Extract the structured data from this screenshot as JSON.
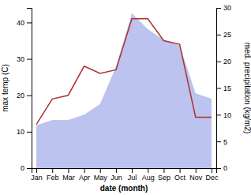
{
  "chart_data": {
    "type": "line",
    "categories": [
      "Jan",
      "Feb",
      "Mar",
      "Apr",
      "May",
      "Jun",
      "Jul",
      "Aug",
      "Sep",
      "Oct",
      "Nov",
      "Dec"
    ],
    "series": [
      {
        "type": "area",
        "color": "#bbc3ee",
        "axis": "y2",
        "values": [
          8,
          9,
          9,
          10,
          12,
          19,
          29,
          26,
          24,
          23,
          14,
          13
        ]
      },
      {
        "type": "line",
        "color": "#b03030",
        "values": [
          12,
          19,
          20,
          28,
          26,
          27,
          41,
          41,
          35,
          34,
          14,
          14
        ]
      }
    ],
    "xlabel": "date (month)",
    "ylabel": "max temp (C)",
    "y2label": "med. precipitation (kg/m2)",
    "ylim": [
      0,
      44
    ],
    "yticks": [
      0,
      10,
      20,
      30,
      40
    ],
    "y2lim": [
      0,
      30
    ],
    "y2ticks": [
      0,
      5,
      10,
      15,
      20,
      25,
      30
    ]
  }
}
